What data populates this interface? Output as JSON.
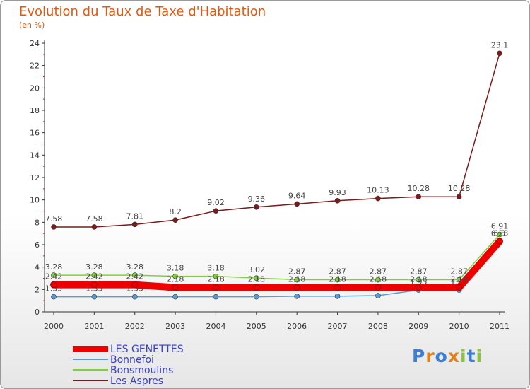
{
  "chart_data": {
    "type": "line",
    "title": "Evolution du Taux de Taxe d'Habitation",
    "ylabel": "(en %)",
    "xlabel": "",
    "x": [
      "2000",
      "2001",
      "2002",
      "2003",
      "2004",
      "2005",
      "2006",
      "2007",
      "2008",
      "2009",
      "2010",
      "2011"
    ],
    "ylim": [
      0,
      24
    ],
    "yticks": [
      "0",
      "2",
      "4",
      "6",
      "8",
      "10",
      "12",
      "14",
      "16",
      "18",
      "20",
      "22",
      "24"
    ],
    "series": [
      {
        "name": "Les Aspres",
        "color": "#7a1a1a",
        "values": [
          7.58,
          7.58,
          7.81,
          8.2,
          9.02,
          9.36,
          9.64,
          9.93,
          10.13,
          10.28,
          10.28,
          23.1
        ],
        "labels": [
          "7.58",
          "7.58",
          "7.81",
          "8.2",
          "9.02",
          "9.36",
          "9.64",
          "9.93",
          "10.13",
          "10.28",
          "10.28",
          "23.1"
        ]
      },
      {
        "name": "Bonsmoulins",
        "color": "#7fd13b",
        "values": [
          3.28,
          3.28,
          3.28,
          3.18,
          3.18,
          3.02,
          2.87,
          2.87,
          2.87,
          2.87,
          2.87,
          6.91
        ],
        "labels": [
          "3.28",
          "3.28",
          "3.28",
          "3.18",
          "3.18",
          "3.02",
          "2.87",
          "2.87",
          "2.87",
          "2.87",
          "2.87",
          "6.91"
        ]
      },
      {
        "name": "Bonnefoi",
        "color": "#5b9bd5",
        "values": [
          1.35,
          1.35,
          1.35,
          1.35,
          1.35,
          1.35,
          1.4,
          1.4,
          1.45,
          1.95,
          1.95,
          6.28
        ],
        "labels": [
          "1.35",
          "1.35",
          "1.35",
          "1.35",
          "1.35",
          "1.35",
          "1.4",
          "1.4",
          "1.45",
          "1.95",
          "1.95",
          "6.28"
        ]
      },
      {
        "name": "LES GENETTES",
        "color": "#ee0000",
        "values": [
          2.42,
          2.42,
          2.42,
          2.18,
          2.18,
          2.18,
          2.18,
          2.18,
          2.18,
          2.18,
          2.18,
          6.3
        ],
        "labels": [
          "2.42",
          "2.42",
          "2.42",
          "2.18",
          "2.18",
          "2.18",
          "2.18",
          "2.18",
          "2.18",
          "2.18",
          "2.18",
          "6.3"
        ]
      }
    ],
    "legend": [
      {
        "name": "LES GENETTES",
        "color": "#ee0000"
      },
      {
        "name": "Bonnefoi",
        "color": "#5b9bd5"
      },
      {
        "name": "Bonsmoulins",
        "color": "#7fd13b"
      },
      {
        "name": "Les Aspres",
        "color": "#7a1a1a"
      }
    ],
    "legend_position": "bottom-left"
  },
  "logo": {
    "letters": [
      "P",
      "r",
      "o",
      "x",
      "i",
      "t",
      "i"
    ],
    "colors": [
      "#3a7fd5",
      "#e0801a",
      "#3a7fd5",
      "#e0801a",
      "#8ac43f",
      "#3a7fd5",
      "#8ac43f"
    ]
  }
}
